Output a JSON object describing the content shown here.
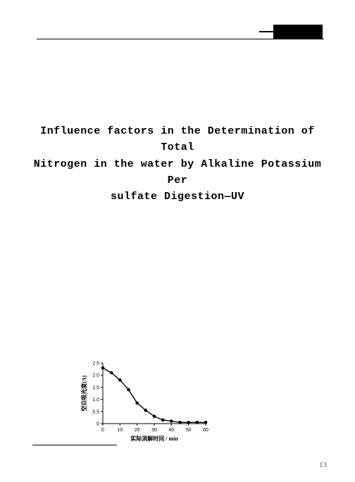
{
  "title": {
    "line1": "Influence factors in the Determination of Total",
    "line2": "Nitrogen in the water by Alkaline Potassium Per",
    "line3": "sulfate Digestion—UV"
  },
  "page_number": "13",
  "chart": {
    "type": "line",
    "x_label": "实际消解时间 / min",
    "y_label": "空白吸光度(A)",
    "xlim": [
      0,
      60
    ],
    "ylim": [
      0,
      2.5
    ],
    "x_ticks": [
      0,
      10,
      20,
      30,
      40,
      50,
      60
    ],
    "y_ticks": [
      0,
      0.5,
      1.0,
      1.5,
      2.0,
      2.5
    ],
    "y_tick_labels": [
      "0",
      "0.5",
      "1.0",
      "1.5",
      "2.0",
      "2.5"
    ],
    "points": [
      {
        "x": 0,
        "y": 2.3
      },
      {
        "x": 5,
        "y": 2.1
      },
      {
        "x": 10,
        "y": 1.8
      },
      {
        "x": 15,
        "y": 1.4
      },
      {
        "x": 20,
        "y": 0.85
      },
      {
        "x": 25,
        "y": 0.55
      },
      {
        "x": 30,
        "y": 0.3
      },
      {
        "x": 35,
        "y": 0.15
      },
      {
        "x": 40,
        "y": 0.1
      },
      {
        "x": 45,
        "y": 0.05
      },
      {
        "x": 50,
        "y": 0.05
      },
      {
        "x": 55,
        "y": 0.05
      },
      {
        "x": 60,
        "y": 0.05
      }
    ],
    "line_color": "#000000",
    "marker_color": "#000000",
    "marker_size": 2.3,
    "line_width": 1.4,
    "axis_color": "#000000",
    "background_color": "#ffffff",
    "label_fontsize": 8,
    "tick_fontsize": 7
  }
}
